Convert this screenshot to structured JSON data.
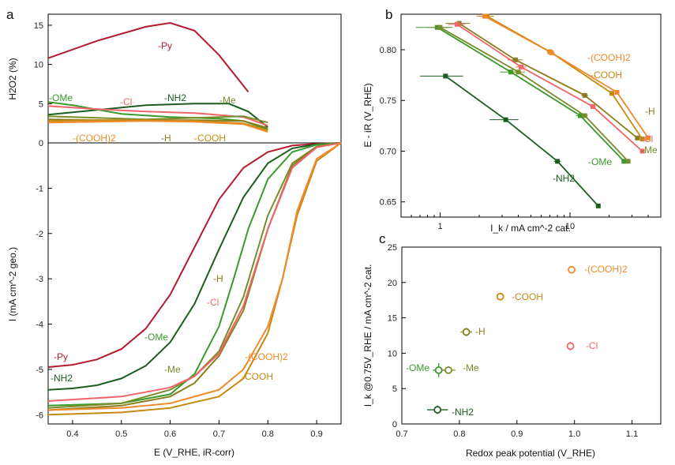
{
  "figure": {
    "panel_a": "a",
    "panel_b": "b",
    "panel_c": "c"
  },
  "colors": {
    "Py": "#b31b2e",
    "NH2": "#1b5e20",
    "OMe": "#3a9a2c",
    "Me": "#7b8c2a",
    "H": "#8a7d1e",
    "Cl": "#f0656a",
    "COOH": "#c68a12",
    "COOH2": "#f08a2a"
  },
  "chart_data": [
    {
      "id": "a",
      "type": "line",
      "title": "",
      "xlabel": "E (V_RHE, iR-corr)",
      "ylabel_top": "H2O2 (%)",
      "ylabel_bottom": "I (mA cm^-2 geo.)",
      "xlim": [
        0.35,
        0.95
      ],
      "ylim_top": [
        0,
        16
      ],
      "ylim_bottom": [
        -6.1,
        0
      ],
      "x_ticks": [
        0.4,
        0.5,
        0.6,
        0.7,
        0.8,
        0.9
      ],
      "y_ticks_top": [
        0,
        5,
        10,
        15
      ],
      "y_ticks_bottom": [
        -6,
        -5,
        -4,
        -3,
        -2,
        -1,
        0
      ],
      "legend": [
        "-Py",
        "-NH2",
        "-OMe",
        "-Me",
        "-H",
        "-Cl",
        "-COOH",
        "-(COOH)2"
      ],
      "h2o2_series": [
        {
          "name": "-Py",
          "x": [
            0.35,
            0.45,
            0.55,
            0.6,
            0.65,
            0.7,
            0.76
          ],
          "values": [
            10.8,
            13,
            14.8,
            15.3,
            14.3,
            11.2,
            6.5
          ]
        },
        {
          "name": "-NH2",
          "x": [
            0.35,
            0.45,
            0.55,
            0.65,
            0.72,
            0.76,
            0.8
          ],
          "values": [
            3.6,
            4.2,
            4.8,
            5.0,
            5.0,
            4.0,
            2.0
          ]
        },
        {
          "name": "-OMe",
          "x": [
            0.35,
            0.4,
            0.5,
            0.6,
            0.7,
            0.75,
            0.8
          ],
          "values": [
            5.2,
            4.8,
            3.7,
            3.3,
            3.1,
            2.8,
            1.7
          ]
        },
        {
          "name": "-Cl",
          "x": [
            0.35,
            0.45,
            0.55,
            0.65,
            0.75,
            0.8
          ],
          "values": [
            4.7,
            4.3,
            4.0,
            3.8,
            3.3,
            2.2
          ]
        },
        {
          "name": "-Me",
          "x": [
            0.35,
            0.45,
            0.55,
            0.65,
            0.75,
            0.8
          ],
          "values": [
            3.4,
            3.2,
            3.0,
            3.2,
            3.4,
            2.6
          ]
        },
        {
          "name": "-H",
          "x": [
            0.35,
            0.45,
            0.55,
            0.65,
            0.75,
            0.8
          ],
          "values": [
            3.0,
            2.9,
            2.9,
            2.9,
            2.8,
            1.9
          ]
        },
        {
          "name": "-COOH",
          "x": [
            0.35,
            0.45,
            0.55,
            0.65,
            0.75,
            0.8
          ],
          "values": [
            2.8,
            2.9,
            2.9,
            2.8,
            2.5,
            1.6
          ]
        },
        {
          "name": "-(COOH)2",
          "x": [
            0.35,
            0.45,
            0.55,
            0.65,
            0.75,
            0.8
          ],
          "values": [
            2.6,
            2.7,
            2.8,
            2.7,
            2.4,
            1.4
          ]
        }
      ],
      "current_series": [
        {
          "name": "-Py",
          "x": [
            0.35,
            0.4,
            0.45,
            0.5,
            0.55,
            0.6,
            0.65,
            0.7,
            0.75,
            0.8,
            0.85,
            0.9,
            0.95
          ],
          "values": [
            -4.95,
            -4.9,
            -4.78,
            -4.55,
            -4.1,
            -3.35,
            -2.3,
            -1.25,
            -0.55,
            -0.2,
            -0.06,
            -0.02,
            0
          ]
        },
        {
          "name": "-NH2",
          "x": [
            0.35,
            0.4,
            0.45,
            0.5,
            0.55,
            0.6,
            0.65,
            0.7,
            0.75,
            0.8,
            0.85,
            0.9,
            0.95
          ],
          "values": [
            -5.45,
            -5.42,
            -5.35,
            -5.2,
            -4.92,
            -4.4,
            -3.55,
            -2.35,
            -1.2,
            -0.45,
            -0.12,
            -0.03,
            0
          ]
        },
        {
          "name": "-OMe",
          "x": [
            0.35,
            0.5,
            0.6,
            0.65,
            0.7,
            0.73,
            0.76,
            0.8,
            0.85,
            0.9,
            0.95
          ],
          "values": [
            -5.8,
            -5.75,
            -5.55,
            -5.1,
            -4.05,
            -3.0,
            -1.9,
            -0.8,
            -0.2,
            -0.04,
            0
          ]
        },
        {
          "name": "-Me",
          "x": [
            0.35,
            0.5,
            0.6,
            0.65,
            0.7,
            0.75,
            0.8,
            0.85,
            0.9,
            0.95
          ],
          "values": [
            -5.85,
            -5.75,
            -5.45,
            -5.15,
            -4.6,
            -3.4,
            -1.6,
            -0.45,
            -0.08,
            0
          ]
        },
        {
          "name": "-H",
          "x": [
            0.35,
            0.5,
            0.6,
            0.65,
            0.7,
            0.75,
            0.8,
            0.85,
            0.9,
            0.95
          ],
          "values": [
            -5.9,
            -5.8,
            -5.6,
            -5.3,
            -4.7,
            -3.7,
            -1.9,
            -0.5,
            -0.08,
            0
          ]
        },
        {
          "name": "-Cl",
          "x": [
            0.35,
            0.5,
            0.6,
            0.65,
            0.7,
            0.75,
            0.8,
            0.85,
            0.9,
            0.95
          ],
          "values": [
            -5.7,
            -5.6,
            -5.4,
            -5.15,
            -4.65,
            -3.6,
            -1.9,
            -0.55,
            -0.1,
            0
          ]
        },
        {
          "name": "-COOH",
          "x": [
            0.35,
            0.5,
            0.6,
            0.7,
            0.75,
            0.8,
            0.83,
            0.86,
            0.9,
            0.95
          ],
          "values": [
            -6.0,
            -5.95,
            -5.85,
            -5.6,
            -5.2,
            -4.2,
            -3.0,
            -1.6,
            -0.4,
            0
          ]
        },
        {
          "name": "-(COOH)2",
          "x": [
            0.35,
            0.5,
            0.6,
            0.7,
            0.75,
            0.8,
            0.83,
            0.86,
            0.9,
            0.95
          ],
          "values": [
            -5.9,
            -5.85,
            -5.75,
            -5.45,
            -5.0,
            -4.05,
            -3.0,
            -1.5,
            -0.35,
            0
          ]
        }
      ],
      "h2o2_labels": [
        {
          "text": "-Py",
          "series": "-Py"
        },
        {
          "text": "-OMe",
          "series": "-OMe"
        },
        {
          "text": "-Cl",
          "series": "-Cl"
        },
        {
          "text": "-NH2",
          "series": "-NH2"
        },
        {
          "text": "-Me",
          "series": "-Me"
        },
        {
          "text": "-(COOH)2",
          "series": "-(COOH)2"
        },
        {
          "text": "-H",
          "series": "-H"
        },
        {
          "text": "-COOH",
          "series": "-COOH"
        }
      ],
      "current_labels": [
        {
          "text": "-H",
          "series": "-H"
        },
        {
          "text": "-Cl",
          "series": "-Cl"
        },
        {
          "text": "-OMe",
          "series": "-OMe"
        },
        {
          "text": "-(COOH)2",
          "series": "-(COOH)2"
        },
        {
          "text": "-Py",
          "series": "-Py"
        },
        {
          "text": "-Me",
          "series": "-Me"
        },
        {
          "text": "-COOH",
          "series": "-COOH"
        },
        {
          "text": "-NH2",
          "series": "-NH2"
        }
      ]
    },
    {
      "id": "b",
      "type": "line",
      "xscale": "log",
      "xlabel": "I_k / mA cm^-2 cat.",
      "ylabel": "E - iR (V_RHE)",
      "xlim": [
        0.5,
        50
      ],
      "ylim": [
        0.635,
        0.835
      ],
      "x_ticks": [
        1,
        10
      ],
      "y_ticks": [
        0.65,
        0.7,
        0.75,
        0.8
      ],
      "series": [
        {
          "name": "-NH2",
          "x": [
            1.1,
            3.2,
            8.0,
            16.5
          ],
          "values": [
            0.774,
            0.731,
            0.69,
            0.646
          ],
          "xerr": [
            0.4,
            0.8,
            0.5,
            0
          ]
        },
        {
          "name": "-OMe",
          "x": [
            0.95,
            3.5,
            12,
            26
          ],
          "values": [
            0.822,
            0.778,
            0.735,
            0.69
          ],
          "xerr": [
            0.3,
            0.6,
            0.8,
            1
          ]
        },
        {
          "name": "-Me",
          "x": [
            1.0,
            4.0,
            13,
            28
          ],
          "values": [
            0.822,
            0.778,
            0.735,
            0.69
          ],
          "xerr": [
            0.2,
            0.5,
            0.7,
            1
          ]
        },
        {
          "name": "-H",
          "x": [
            1.4,
            3.8,
            13,
            33
          ],
          "values": [
            0.826,
            0.79,
            0.755,
            0.713
          ],
          "xerr": [
            0.3,
            0.5,
            0.8,
            1
          ]
        },
        {
          "name": "-Cl",
          "x": [
            1.35,
            4.2,
            15,
            36
          ],
          "values": [
            0.825,
            0.783,
            0.744,
            0.7
          ],
          "xerr": [
            0.2,
            0.4,
            0.8,
            1
          ]
        },
        {
          "name": "-COOH",
          "x": [
            2.3,
            7.0,
            21,
            36
          ],
          "values": [
            0.833,
            0.798,
            0.757,
            0.712
          ],
          "xerr": [
            0.3,
            0.4,
            0.8,
            1
          ]
        },
        {
          "name": "-(COOH)2",
          "x": [
            2.2,
            7.2,
            23,
            40
          ],
          "values": [
            0.833,
            0.797,
            0.758,
            0.713
          ],
          "xerr": [
            0.3,
            0.4,
            0.8,
            1
          ]
        }
      ],
      "labels": [
        {
          "text": "-(COOH)2",
          "series": "-(COOH)2"
        },
        {
          "text": "-COOH",
          "series": "-COOH"
        },
        {
          "text": "-H",
          "series": "-H"
        },
        {
          "text": "-Cl",
          "series": "-Cl"
        },
        {
          "text": "-Me",
          "series": "-Me"
        },
        {
          "text": "-OMe",
          "series": "-OMe"
        },
        {
          "text": "-NH2",
          "series": "-NH2"
        }
      ]
    },
    {
      "id": "c",
      "type": "scatter",
      "xlabel": "Redox peak potential (V_RHE)",
      "ylabel": "I_k @0.75V_RHE / mA cm^-2 cat.",
      "xlim": [
        0.7,
        1.15
      ],
      "ylim": [
        0,
        25
      ],
      "x_ticks": [
        0.7,
        0.8,
        0.9,
        1.0,
        1.1
      ],
      "y_ticks": [
        0,
        5,
        10,
        15,
        20,
        25
      ],
      "points": [
        {
          "name": "-NH2",
          "x": 0.762,
          "y": 2.0,
          "xerr": 0.018,
          "yerr": 0.6
        },
        {
          "name": "-OMe",
          "x": 0.764,
          "y": 7.6,
          "xerr": 0.01,
          "yerr": 1.0
        },
        {
          "name": "-Me",
          "x": 0.781,
          "y": 7.6,
          "xerr": 0.012,
          "yerr": 0.5
        },
        {
          "name": "-H",
          "x": 0.812,
          "y": 13.0,
          "xerr": 0.01,
          "yerr": 0.6
        },
        {
          "name": "-COOH",
          "x": 0.871,
          "y": 18.0,
          "xerr": 0.006,
          "yerr": 0.4
        },
        {
          "name": "-Cl",
          "x": 0.993,
          "y": 11.0,
          "xerr": 0.006,
          "yerr": 0.6
        },
        {
          "name": "-(COOH)2",
          "x": 0.995,
          "y": 21.8,
          "xerr": 0.005,
          "yerr": 0.4
        }
      ],
      "labels": [
        {
          "text": "-(COOH)2",
          "series": "-(COOH)2"
        },
        {
          "text": "-COOH",
          "series": "-COOH"
        },
        {
          "text": "-H",
          "series": "-H"
        },
        {
          "text": "-Cl",
          "series": "-Cl"
        },
        {
          "text": "-OMe",
          "series": "-OMe"
        },
        {
          "text": "-Me",
          "series": "-Me"
        },
        {
          "text": "-NH2",
          "series": "-NH2"
        }
      ]
    }
  ]
}
